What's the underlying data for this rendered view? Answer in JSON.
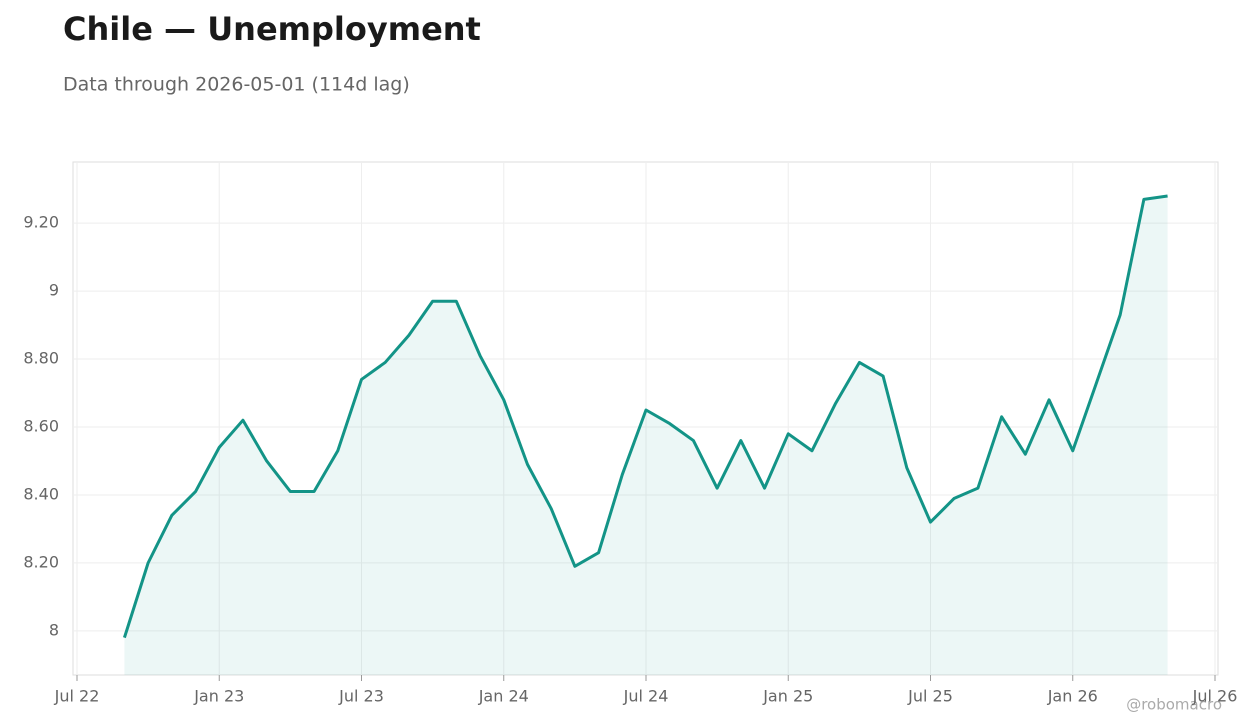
{
  "chart_data": {
    "type": "line",
    "title": "Chile — Unemployment",
    "subtitle": "Data through 2026-05-01 (114d lag)",
    "watermark": "@robomacro",
    "x": [
      "2022-09",
      "2022-10",
      "2022-11",
      "2022-12",
      "2023-01",
      "2023-02",
      "2023-03",
      "2023-04",
      "2023-05",
      "2023-06",
      "2023-07",
      "2023-08",
      "2023-09",
      "2023-10",
      "2023-11",
      "2023-12",
      "2024-01",
      "2024-02",
      "2024-03",
      "2024-04",
      "2024-05",
      "2024-06",
      "2024-07",
      "2024-08",
      "2024-09",
      "2024-10",
      "2024-11",
      "2024-12",
      "2025-01",
      "2025-02",
      "2025-03",
      "2025-04",
      "2025-05",
      "2025-06",
      "2025-07",
      "2025-08",
      "2025-09",
      "2025-10",
      "2025-11",
      "2025-12",
      "2026-01",
      "2026-02",
      "2026-03",
      "2026-04",
      "2026-05"
    ],
    "series": [
      {
        "name": "Unemployment",
        "color": "#139487",
        "values": [
          7.98,
          8.2,
          8.34,
          8.41,
          8.54,
          8.62,
          8.5,
          8.41,
          8.41,
          8.53,
          8.74,
          8.79,
          8.87,
          8.97,
          8.97,
          8.81,
          8.68,
          8.49,
          8.36,
          8.19,
          8.23,
          8.46,
          8.65,
          8.61,
          8.56,
          8.42,
          8.56,
          8.42,
          8.58,
          8.53,
          8.67,
          8.79,
          8.75,
          8.48,
          8.32,
          8.39,
          8.42,
          8.63,
          8.52,
          8.68,
          8.53,
          8.73,
          8.93,
          9.27,
          9.28
        ]
      }
    ],
    "xlim": [
      "2022-07",
      "2026-07"
    ],
    "xticks": [
      {
        "value": "2022-07",
        "label": "Jul 22"
      },
      {
        "value": "2023-01",
        "label": "Jan 23"
      },
      {
        "value": "2023-07",
        "label": "Jul 23"
      },
      {
        "value": "2024-01",
        "label": "Jan 24"
      },
      {
        "value": "2024-07",
        "label": "Jul 24"
      },
      {
        "value": "2025-01",
        "label": "Jan 25"
      },
      {
        "value": "2025-07",
        "label": "Jul 25"
      },
      {
        "value": "2026-01",
        "label": "Jan 26"
      },
      {
        "value": "2026-07",
        "label": "Jul 26"
      }
    ],
    "ylim": [
      7.87,
      9.38
    ],
    "yticks": [
      8,
      {
        "value": 8.2,
        "label": "8.20"
      },
      {
        "value": 8.4,
        "label": "8.40"
      },
      {
        "value": 8.6,
        "label": "8.60"
      },
      {
        "value": 8.8,
        "label": "8.80"
      },
      9,
      {
        "value": 9.2,
        "label": "9.20"
      }
    ],
    "grid": true
  }
}
